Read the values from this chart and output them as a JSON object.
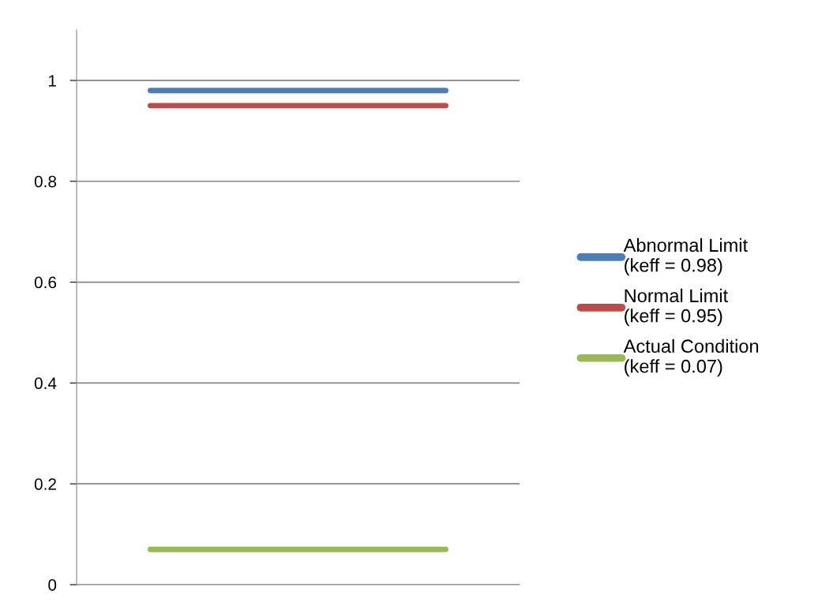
{
  "chart_data": {
    "type": "line",
    "categories": [
      null,
      null,
      null
    ],
    "series": [
      {
        "name": "Abnormal Limit\n(keff = 0.98)",
        "color": "#4a7ebb",
        "values": [
          0.98,
          0.98,
          0.98
        ]
      },
      {
        "name": "Normal Limit\n(keff = 0.95)",
        "color": "#be4b48",
        "values": [
          0.95,
          0.95,
          0.95
        ]
      },
      {
        "name": "Actual Condition\n(keff = 0.07)",
        "color": "#98b954",
        "values": [
          0.07,
          0.07,
          0.07
        ]
      }
    ],
    "ylim": [
      0,
      1.1
    ],
    "yticks": [
      0,
      0.2,
      0.4,
      0.6,
      0.8,
      1
    ],
    "grid": "y",
    "legend": "right",
    "marker": "none",
    "line_style": "solid"
  }
}
